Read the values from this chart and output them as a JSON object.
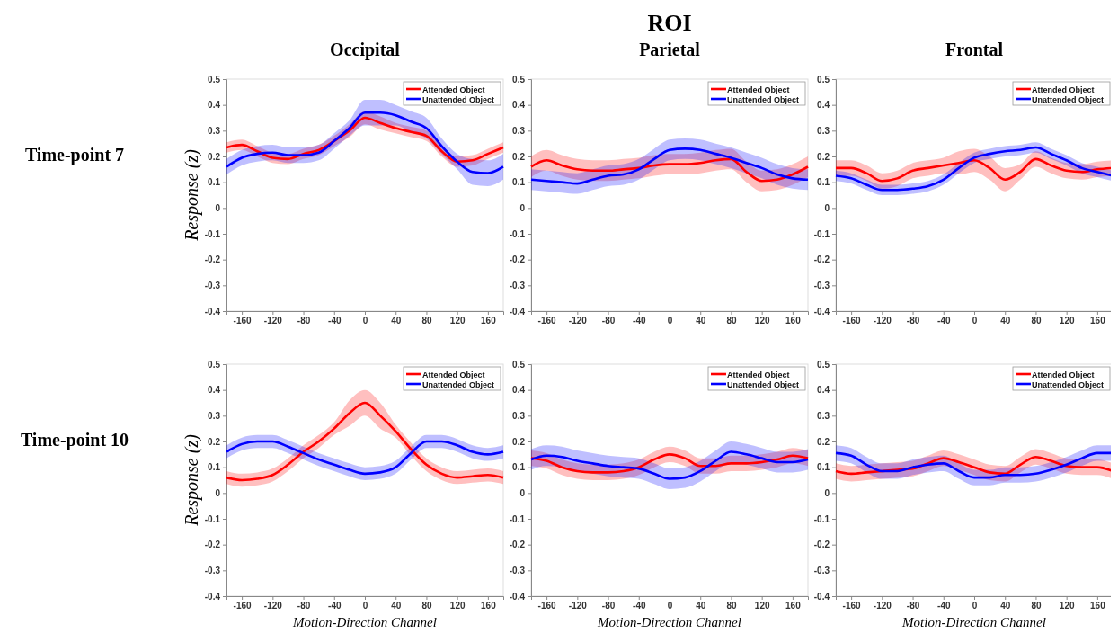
{
  "chart_data": [
    {
      "type": "line",
      "subtitle": "Occipital",
      "ylabel": "Response (z)",
      "annotations": [
        "Time-point 7"
      ],
      "legend": "top right",
      "xlim": [
        -180,
        180
      ],
      "xticks": [
        -160,
        -120,
        -80,
        -40,
        0,
        40,
        80,
        120,
        160
      ],
      "ylim": [
        -0.4,
        0.5
      ],
      "yticks": [
        -0.4,
        -0.3,
        -0.2,
        -0.1,
        0,
        0.1,
        0.2,
        0.3,
        0.4,
        0.5
      ],
      "x": [
        -180,
        -160,
        -140,
        -120,
        -100,
        -80,
        -60,
        -40,
        -20,
        0,
        20,
        40,
        60,
        80,
        100,
        120,
        140,
        160,
        180
      ],
      "series": [
        {
          "name": "Attended Object",
          "color": "#ff0000",
          "values": [
            0.235,
            0.245,
            0.22,
            0.195,
            0.19,
            0.21,
            0.225,
            0.26,
            0.3,
            0.35,
            0.33,
            0.31,
            0.295,
            0.28,
            0.22,
            0.18,
            0.185,
            0.21,
            0.235
          ],
          "lower": [
            0.215,
            0.225,
            0.2,
            0.175,
            0.17,
            0.19,
            0.205,
            0.24,
            0.275,
            0.325,
            0.305,
            0.29,
            0.275,
            0.26,
            0.2,
            0.16,
            0.165,
            0.19,
            0.215
          ],
          "upper": [
            0.255,
            0.265,
            0.24,
            0.215,
            0.21,
            0.23,
            0.245,
            0.28,
            0.325,
            0.375,
            0.355,
            0.33,
            0.315,
            0.3,
            0.24,
            0.2,
            0.205,
            0.23,
            0.255
          ]
        },
        {
          "name": "Unattended Object",
          "color": "#0000ff",
          "values": [
            0.16,
            0.195,
            0.21,
            0.215,
            0.205,
            0.205,
            0.215,
            0.26,
            0.31,
            0.37,
            0.37,
            0.36,
            0.335,
            0.31,
            0.24,
            0.18,
            0.14,
            0.135,
            0.16
          ],
          "lower": [
            0.13,
            0.165,
            0.18,
            0.185,
            0.175,
            0.175,
            0.185,
            0.23,
            0.28,
            0.32,
            0.32,
            0.32,
            0.295,
            0.27,
            0.21,
            0.15,
            0.09,
            0.085,
            0.11
          ],
          "upper": [
            0.19,
            0.225,
            0.24,
            0.245,
            0.235,
            0.235,
            0.245,
            0.29,
            0.34,
            0.42,
            0.42,
            0.4,
            0.375,
            0.35,
            0.27,
            0.21,
            0.19,
            0.185,
            0.21
          ]
        }
      ]
    },
    {
      "type": "line",
      "title": "ROI",
      "subtitle": "Parietal",
      "legend": "top right",
      "xlim": [
        -180,
        180
      ],
      "xticks": [
        -160,
        -120,
        -80,
        -40,
        0,
        40,
        80,
        120,
        160
      ],
      "ylim": [
        -0.4,
        0.5
      ],
      "yticks": [
        -0.4,
        -0.3,
        -0.2,
        -0.1,
        0,
        0.1,
        0.2,
        0.3,
        0.4,
        0.5
      ],
      "x": [
        -180,
        -160,
        -140,
        -120,
        -100,
        -80,
        -60,
        -40,
        -20,
        0,
        20,
        40,
        60,
        80,
        100,
        120,
        140,
        160,
        180
      ],
      "series": [
        {
          "name": "Attended Object",
          "color": "#ff0000",
          "values": [
            0.16,
            0.185,
            0.165,
            0.15,
            0.145,
            0.145,
            0.15,
            0.155,
            0.165,
            0.17,
            0.17,
            0.175,
            0.185,
            0.19,
            0.14,
            0.105,
            0.11,
            0.13,
            0.16
          ],
          "lower": [
            0.12,
            0.145,
            0.125,
            0.11,
            0.105,
            0.105,
            0.11,
            0.115,
            0.125,
            0.13,
            0.13,
            0.135,
            0.145,
            0.15,
            0.1,
            0.065,
            0.07,
            0.09,
            0.12
          ],
          "upper": [
            0.2,
            0.225,
            0.205,
            0.19,
            0.185,
            0.185,
            0.19,
            0.195,
            0.205,
            0.21,
            0.21,
            0.215,
            0.225,
            0.23,
            0.18,
            0.145,
            0.15,
            0.17,
            0.2
          ]
        },
        {
          "name": "Unattended Object",
          "color": "#0000ff",
          "values": [
            0.11,
            0.105,
            0.1,
            0.095,
            0.11,
            0.125,
            0.13,
            0.15,
            0.19,
            0.225,
            0.23,
            0.225,
            0.21,
            0.195,
            0.175,
            0.155,
            0.13,
            0.115,
            0.11
          ],
          "lower": [
            0.07,
            0.065,
            0.06,
            0.055,
            0.07,
            0.085,
            0.09,
            0.11,
            0.15,
            0.185,
            0.19,
            0.185,
            0.17,
            0.155,
            0.135,
            0.115,
            0.09,
            0.075,
            0.07
          ],
          "upper": [
            0.15,
            0.145,
            0.14,
            0.135,
            0.15,
            0.165,
            0.17,
            0.19,
            0.23,
            0.265,
            0.27,
            0.265,
            0.25,
            0.235,
            0.215,
            0.195,
            0.17,
            0.155,
            0.15
          ]
        }
      ]
    },
    {
      "type": "line",
      "subtitle": "Frontal",
      "legend": "top right",
      "xlim": [
        -180,
        180
      ],
      "xticks": [
        -160,
        -120,
        -80,
        -40,
        0,
        40,
        80,
        120,
        160
      ],
      "ylim": [
        -0.4,
        0.5
      ],
      "yticks": [
        -0.4,
        -0.3,
        -0.2,
        -0.1,
        0,
        0.1,
        0.2,
        0.3,
        0.4,
        0.5
      ],
      "x": [
        -180,
        -160,
        -140,
        -120,
        -100,
        -80,
        -60,
        -40,
        -20,
        0,
        20,
        40,
        60,
        80,
        100,
        120,
        140,
        160,
        180
      ],
      "series": [
        {
          "name": "Attended Object",
          "color": "#ff0000",
          "values": [
            0.155,
            0.155,
            0.135,
            0.105,
            0.115,
            0.145,
            0.155,
            0.165,
            0.175,
            0.185,
            0.155,
            0.11,
            0.14,
            0.19,
            0.165,
            0.145,
            0.14,
            0.15,
            0.155
          ],
          "lower": [
            0.125,
            0.125,
            0.105,
            0.075,
            0.085,
            0.115,
            0.125,
            0.135,
            0.13,
            0.14,
            0.11,
            0.065,
            0.11,
            0.16,
            0.135,
            0.115,
            0.11,
            0.12,
            0.125
          ],
          "upper": [
            0.185,
            0.185,
            0.165,
            0.135,
            0.145,
            0.175,
            0.185,
            0.195,
            0.22,
            0.23,
            0.2,
            0.155,
            0.17,
            0.22,
            0.195,
            0.175,
            0.17,
            0.18,
            0.185
          ]
        },
        {
          "name": "Unattended Object",
          "color": "#0000ff",
          "values": [
            0.125,
            0.115,
            0.09,
            0.07,
            0.07,
            0.075,
            0.085,
            0.11,
            0.155,
            0.195,
            0.21,
            0.22,
            0.225,
            0.235,
            0.21,
            0.185,
            0.155,
            0.14,
            0.125
          ],
          "lower": [
            0.105,
            0.095,
            0.07,
            0.05,
            0.05,
            0.055,
            0.065,
            0.09,
            0.135,
            0.175,
            0.19,
            0.2,
            0.205,
            0.215,
            0.19,
            0.165,
            0.135,
            0.12,
            0.105
          ],
          "upper": [
            0.145,
            0.135,
            0.11,
            0.09,
            0.09,
            0.095,
            0.105,
            0.13,
            0.175,
            0.215,
            0.23,
            0.24,
            0.245,
            0.255,
            0.23,
            0.205,
            0.175,
            0.16,
            0.145
          ]
        }
      ]
    },
    {
      "type": "line",
      "ylabel": "Response (z)",
      "xlabel": "Motion-Direction Channel",
      "annotations": [
        "Time-point 10"
      ],
      "legend": "top right",
      "xlim": [
        -180,
        180
      ],
      "xticks": [
        -160,
        -120,
        -80,
        -40,
        0,
        40,
        80,
        120,
        160
      ],
      "ylim": [
        -0.4,
        0.5
      ],
      "yticks": [
        -0.4,
        -0.3,
        -0.2,
        -0.1,
        0,
        0.1,
        0.2,
        0.3,
        0.4,
        0.5
      ],
      "x": [
        -180,
        -160,
        -140,
        -120,
        -100,
        -80,
        -60,
        -40,
        -20,
        0,
        20,
        40,
        60,
        80,
        100,
        120,
        140,
        160,
        180
      ],
      "series": [
        {
          "name": "Attended Object",
          "color": "#ff0000",
          "values": [
            0.06,
            0.05,
            0.055,
            0.07,
            0.11,
            0.16,
            0.2,
            0.25,
            0.31,
            0.35,
            0.3,
            0.24,
            0.17,
            0.11,
            0.075,
            0.06,
            0.065,
            0.07,
            0.06
          ],
          "lower": [
            0.035,
            0.025,
            0.03,
            0.045,
            0.085,
            0.135,
            0.175,
            0.225,
            0.26,
            0.3,
            0.25,
            0.215,
            0.145,
            0.085,
            0.05,
            0.035,
            0.04,
            0.045,
            0.035
          ],
          "upper": [
            0.085,
            0.075,
            0.08,
            0.095,
            0.135,
            0.185,
            0.225,
            0.275,
            0.36,
            0.4,
            0.35,
            0.265,
            0.195,
            0.135,
            0.1,
            0.085,
            0.09,
            0.095,
            0.085
          ]
        },
        {
          "name": "Unattended Object",
          "color": "#0000ff",
          "values": [
            0.16,
            0.19,
            0.2,
            0.2,
            0.18,
            0.155,
            0.13,
            0.11,
            0.09,
            0.075,
            0.08,
            0.1,
            0.155,
            0.2,
            0.2,
            0.185,
            0.16,
            0.15,
            0.16
          ],
          "lower": [
            0.135,
            0.165,
            0.175,
            0.175,
            0.155,
            0.13,
            0.105,
            0.085,
            0.065,
            0.05,
            0.055,
            0.075,
            0.13,
            0.175,
            0.175,
            0.16,
            0.135,
            0.125,
            0.135
          ],
          "upper": [
            0.185,
            0.215,
            0.225,
            0.225,
            0.205,
            0.18,
            0.155,
            0.135,
            0.115,
            0.1,
            0.105,
            0.125,
            0.18,
            0.225,
            0.225,
            0.21,
            0.185,
            0.175,
            0.185
          ]
        }
      ]
    },
    {
      "type": "line",
      "xlabel": "Motion-Direction Channel",
      "legend": "top right",
      "xlim": [
        -180,
        180
      ],
      "xticks": [
        -160,
        -120,
        -80,
        -40,
        0,
        40,
        80,
        120,
        160
      ],
      "ylim": [
        -0.4,
        0.5
      ],
      "yticks": [
        -0.4,
        -0.3,
        -0.2,
        -0.1,
        0,
        0.1,
        0.2,
        0.3,
        0.4,
        0.5
      ],
      "x": [
        -180,
        -160,
        -140,
        -120,
        -100,
        -80,
        -60,
        -40,
        -20,
        0,
        20,
        40,
        60,
        80,
        100,
        120,
        140,
        160,
        180
      ],
      "series": [
        {
          "name": "Attended Object",
          "color": "#ff0000",
          "values": [
            0.135,
            0.125,
            0.1,
            0.085,
            0.08,
            0.08,
            0.085,
            0.1,
            0.13,
            0.15,
            0.135,
            0.105,
            0.105,
            0.115,
            0.115,
            0.12,
            0.13,
            0.145,
            0.135
          ],
          "lower": [
            0.105,
            0.095,
            0.07,
            0.055,
            0.05,
            0.05,
            0.055,
            0.07,
            0.1,
            0.12,
            0.105,
            0.075,
            0.075,
            0.085,
            0.085,
            0.09,
            0.1,
            0.115,
            0.105
          ],
          "upper": [
            0.165,
            0.155,
            0.13,
            0.115,
            0.11,
            0.11,
            0.115,
            0.13,
            0.16,
            0.18,
            0.165,
            0.135,
            0.135,
            0.145,
            0.145,
            0.15,
            0.16,
            0.175,
            0.165
          ]
        },
        {
          "name": "Unattended Object",
          "color": "#0000ff",
          "values": [
            0.13,
            0.145,
            0.14,
            0.125,
            0.115,
            0.105,
            0.1,
            0.095,
            0.075,
            0.055,
            0.06,
            0.085,
            0.125,
            0.16,
            0.15,
            0.135,
            0.12,
            0.12,
            0.13
          ],
          "lower": [
            0.09,
            0.105,
            0.1,
            0.085,
            0.075,
            0.065,
            0.06,
            0.055,
            0.035,
            0.015,
            0.02,
            0.045,
            0.085,
            0.12,
            0.11,
            0.095,
            0.08,
            0.08,
            0.09
          ],
          "upper": [
            0.17,
            0.185,
            0.18,
            0.165,
            0.155,
            0.145,
            0.14,
            0.135,
            0.115,
            0.095,
            0.1,
            0.125,
            0.165,
            0.2,
            0.19,
            0.175,
            0.16,
            0.16,
            0.17
          ]
        }
      ]
    },
    {
      "type": "line",
      "xlabel": "Motion-Direction Channel",
      "legend": "top right",
      "xlim": [
        -180,
        180
      ],
      "xticks": [
        -160,
        -120,
        -80,
        -40,
        0,
        40,
        80,
        120,
        160
      ],
      "ylim": [
        -0.4,
        0.5
      ],
      "yticks": [
        -0.4,
        -0.3,
        -0.2,
        -0.1,
        0,
        0.1,
        0.2,
        0.3,
        0.4,
        0.5
      ],
      "x": [
        -180,
        -160,
        -140,
        -120,
        -100,
        -80,
        -60,
        -40,
        -20,
        0,
        20,
        40,
        60,
        80,
        100,
        120,
        140,
        160,
        180
      ],
      "series": [
        {
          "name": "Attended Object",
          "color": "#ff0000",
          "values": [
            0.085,
            0.075,
            0.08,
            0.085,
            0.09,
            0.095,
            0.115,
            0.135,
            0.12,
            0.1,
            0.08,
            0.075,
            0.11,
            0.14,
            0.125,
            0.105,
            0.1,
            0.1,
            0.085
          ],
          "lower": [
            0.055,
            0.045,
            0.05,
            0.055,
            0.06,
            0.065,
            0.085,
            0.105,
            0.09,
            0.07,
            0.05,
            0.045,
            0.08,
            0.11,
            0.095,
            0.075,
            0.07,
            0.07,
            0.055
          ],
          "upper": [
            0.115,
            0.105,
            0.11,
            0.115,
            0.12,
            0.125,
            0.145,
            0.165,
            0.15,
            0.13,
            0.11,
            0.105,
            0.14,
            0.17,
            0.155,
            0.135,
            0.13,
            0.13,
            0.115
          ]
        },
        {
          "name": "Unattended Object",
          "color": "#0000ff",
          "values": [
            0.155,
            0.145,
            0.11,
            0.085,
            0.085,
            0.1,
            0.11,
            0.115,
            0.085,
            0.06,
            0.06,
            0.07,
            0.07,
            0.075,
            0.09,
            0.11,
            0.135,
            0.155,
            0.155
          ],
          "lower": [
            0.125,
            0.115,
            0.08,
            0.055,
            0.055,
            0.07,
            0.08,
            0.085,
            0.055,
            0.03,
            0.03,
            0.04,
            0.04,
            0.045,
            0.06,
            0.08,
            0.105,
            0.125,
            0.125
          ],
          "upper": [
            0.185,
            0.175,
            0.14,
            0.115,
            0.115,
            0.13,
            0.14,
            0.145,
            0.115,
            0.09,
            0.09,
            0.1,
            0.1,
            0.105,
            0.12,
            0.14,
            0.165,
            0.185,
            0.185
          ]
        }
      ]
    }
  ]
}
